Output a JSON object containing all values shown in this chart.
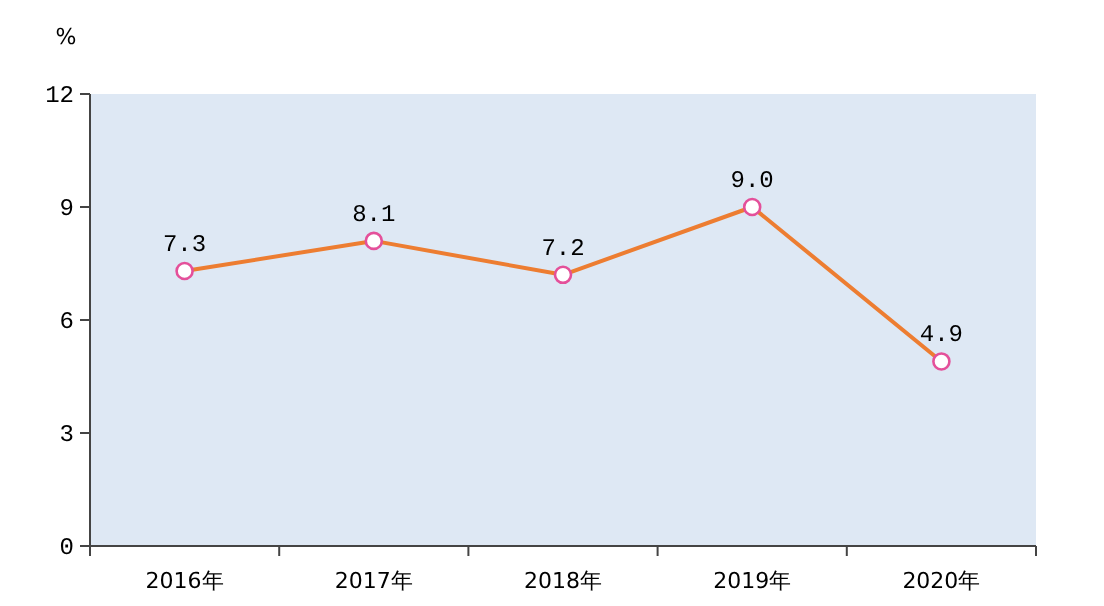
{
  "chart_data": {
    "type": "line",
    "ylabel": "%",
    "categories": [
      "2016年",
      "2017年",
      "2018年",
      "2019年",
      "2020年"
    ],
    "series": [
      {
        "color": "#ed7d31",
        "values": [
          7.3,
          8.1,
          7.2,
          9.0,
          4.9
        ],
        "value_labels": [
          "7.3",
          "8.1",
          "7.2",
          "9.0",
          "4.9"
        ]
      }
    ],
    "ylim": [
      0,
      12
    ],
    "yticks": [
      0,
      3,
      6,
      9,
      12
    ],
    "marker": "circle",
    "line_style": "solid",
    "grid": false
  }
}
